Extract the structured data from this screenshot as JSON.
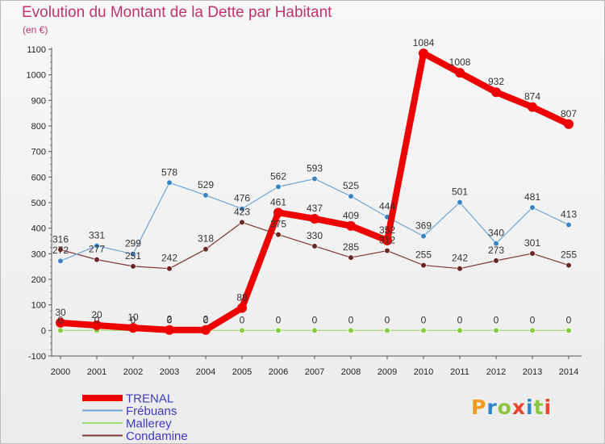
{
  "title": "Evolution du Montant de la Dette par Habitant",
  "unit": "(en €)",
  "logo": {
    "text": "Proxiti",
    "letter_colors": [
      "#f39a1d",
      "#2f86c9",
      "#8cc63f",
      "#e9452f",
      "#2f86c9",
      "#8cc63f",
      "#e9452f"
    ]
  },
  "chart_data": {
    "type": "line",
    "x": [
      "2000",
      "2001",
      "2002",
      "2003",
      "2004",
      "2005",
      "2006",
      "2007",
      "2008",
      "2009",
      "2010",
      "2011",
      "2012",
      "2013",
      "2014"
    ],
    "ylim": [
      -100,
      1100
    ],
    "yticks": [
      -100,
      0,
      100,
      200,
      300,
      400,
      500,
      600,
      700,
      800,
      900,
      1000,
      1100
    ],
    "grid": false,
    "legend_position": "bottom-left",
    "series": [
      {
        "name": "TRENAL",
        "color": "#ee0000",
        "marker_color": "#ee0000",
        "width": 8,
        "values": [
          30,
          20,
          10,
          2,
          2,
          88,
          461,
          437,
          409,
          352,
          1084,
          1008,
          932,
          874,
          807
        ],
        "labels": [
          "30",
          "20",
          "10",
          "2",
          "2",
          "88",
          "461",
          "437",
          "409",
          "352",
          "1084",
          "1008",
          "932",
          "874",
          "807"
        ]
      },
      {
        "name": "Frébuans",
        "color": "#6fa5d6",
        "marker_color": "#3b84c4",
        "width": 1.2,
        "values": [
          272,
          331,
          299,
          578,
          529,
          476,
          562,
          593,
          525,
          444,
          369,
          501,
          340,
          481,
          413
        ],
        "labels": [
          "272",
          "331",
          "299",
          "578",
          "529",
          "476",
          "562",
          "593",
          "525",
          "444",
          "369",
          "501",
          "340",
          "481",
          "413"
        ]
      },
      {
        "name": "Mallerey",
        "color": "#9fdb6a",
        "marker_color": "#84cc3e",
        "width": 1.2,
        "values": [
          0,
          0,
          0,
          0,
          0,
          0,
          0,
          0,
          0,
          0,
          0,
          0,
          0,
          0,
          0
        ],
        "labels": [
          "0",
          "0",
          "0",
          "0",
          "0",
          "0",
          "0",
          "0",
          "0",
          "0",
          "0",
          "0",
          "0",
          "0",
          "0"
        ]
      },
      {
        "name": "Condamine",
        "color": "#7d3535",
        "marker_color": "#6a2626",
        "width": 1.2,
        "values": [
          316,
          277,
          251,
          242,
          318,
          423,
          375,
          330,
          285,
          312,
          255,
          242,
          273,
          301,
          255
        ],
        "labels": [
          "316",
          "277",
          "251",
          "242",
          "318",
          "423",
          "375",
          "330",
          "285",
          "312",
          "255",
          "242",
          "273",
          "301",
          "255"
        ]
      }
    ]
  }
}
